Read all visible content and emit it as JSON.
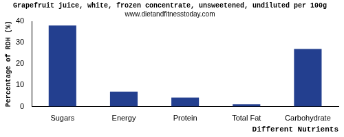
{
  "chart_data": {
    "type": "bar",
    "title": "Grapefruit juice, white, frozen concentrate, unsweetened, undiluted per 100g",
    "subtitle": "www.dietandfitnesstoday.com",
    "x_label": "Different Nutrients",
    "y_label": "Percentage of RDH (%)",
    "categories": [
      "Sugars",
      "Energy",
      "Protein",
      "Total Fat",
      "Carbohydrate"
    ],
    "values": [
      38,
      7,
      4.2,
      1.1,
      27
    ],
    "color": "#233f8f",
    "ylim": [
      0,
      40
    ],
    "yticks": [
      0,
      10,
      20,
      30,
      40
    ],
    "grid": false
  }
}
